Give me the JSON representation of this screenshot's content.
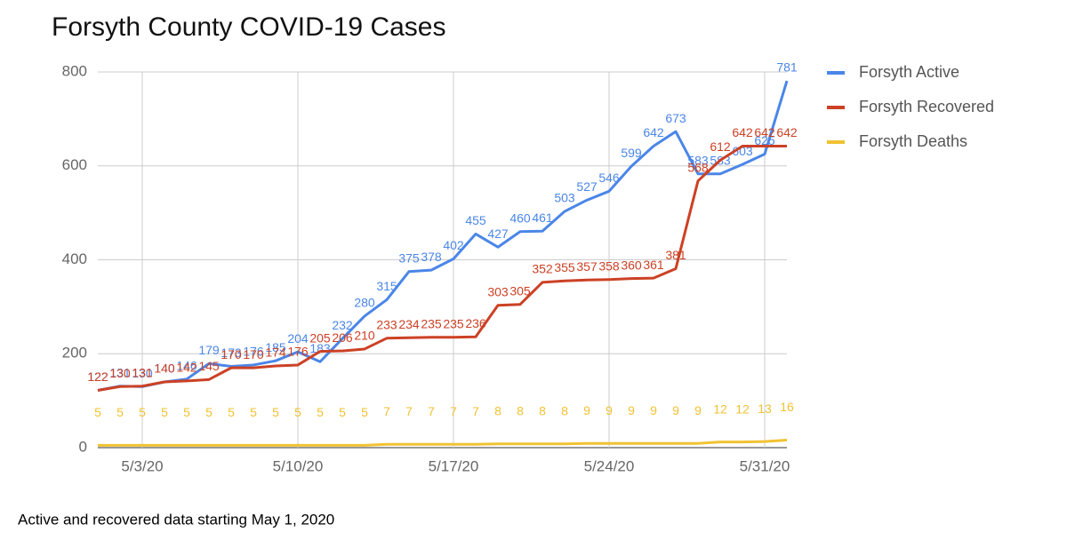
{
  "chart_data": {
    "type": "line",
    "title": "Forsyth County COVID-19 Cases",
    "caption": "Active and recovered data starting May 1, 2020",
    "categories": [
      null,
      null,
      "5/3/20",
      null,
      null,
      null,
      null,
      null,
      null,
      "5/10/20",
      null,
      null,
      null,
      null,
      null,
      null,
      "5/17/20",
      null,
      null,
      null,
      null,
      null,
      null,
      "5/24/20",
      null,
      null,
      null,
      null,
      null,
      null,
      "5/31/20",
      null
    ],
    "series": [
      {
        "name": "Forsyth Active",
        "color": "#4a86e8",
        "values": [
          122,
          131,
          130,
          140,
          146,
          179,
          173,
          176,
          185,
          204,
          183,
          232,
          280,
          315,
          375,
          378,
          402,
          455,
          427,
          460,
          461,
          503,
          527,
          546,
          599,
          642,
          673,
          583,
          583,
          603,
          625,
          781
        ]
      },
      {
        "name": "Forsyth Recovered",
        "color": "#cc4125",
        "values": [
          122,
          130,
          131,
          140,
          142,
          145,
          170,
          170,
          174,
          176,
          205,
          206,
          210,
          233,
          234,
          235,
          235,
          236,
          303,
          305,
          352,
          355,
          357,
          358,
          360,
          361,
          381,
          568,
          612,
          642,
          642,
          642
        ]
      },
      {
        "name": "Forsyth Deaths",
        "color": "#f1c232",
        "values": [
          5,
          5,
          5,
          5,
          5,
          5,
          5,
          5,
          5,
          5,
          5,
          5,
          5,
          7,
          7,
          7,
          7,
          7,
          8,
          8,
          8,
          8,
          9,
          9,
          9,
          9,
          9,
          9,
          12,
          12,
          13,
          16
        ]
      }
    ],
    "ylim": [
      0,
      800
    ],
    "yticks": [
      0,
      200,
      400,
      600,
      800
    ],
    "grid": true,
    "legend": "right"
  }
}
